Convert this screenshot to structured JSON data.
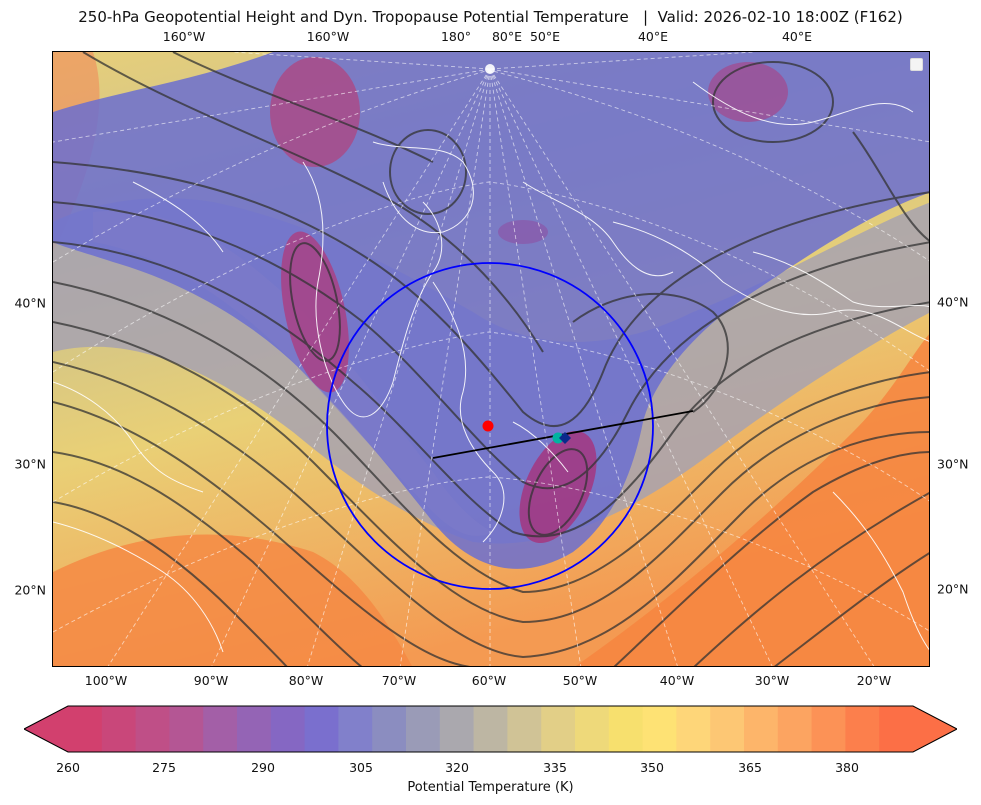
{
  "figure": {
    "title": "250-hPa Geopotential Height and Dyn. Tropopause Potential Temperature   |  Valid: 2026-02-10 18:00Z (F162)"
  },
  "axes": {
    "top_ticks": [
      "160°W",
      "160°W",
      "180°",
      "80°E",
      "50°E",
      "40°E",
      "40°E"
    ],
    "bottom_ticks": [
      "100°W",
      "90°W",
      "80°W",
      "70°W",
      "60°W",
      "50°W",
      "40°W",
      "30°W",
      "20°W"
    ],
    "left_ticks": [
      "40°N",
      "30°N",
      "20°N"
    ],
    "right_ticks": [
      "40°N",
      "30°N",
      "20°N"
    ]
  },
  "colorbar": {
    "label": "Potential Temperature (K)",
    "ticks": [
      "260",
      "275",
      "290",
      "305",
      "320",
      "335",
      "350",
      "365",
      "380"
    ],
    "colors": [
      "#d2406e",
      "#c9477a",
      "#bf4f87",
      "#b45694",
      "#a35fa7",
      "#9464b5",
      "#8567c3",
      "#7a6fce",
      "#8180cb",
      "#8b8dc0",
      "#9a9bb7",
      "#aaa8ae",
      "#bdb6a3",
      "#d0c396",
      "#e2cf87",
      "#eed97a",
      "#f7e06e",
      "#fee274",
      "#fed679",
      "#fdc774",
      "#fdb56a",
      "#fca461",
      "#fc9256",
      "#fc7f4c",
      "#fc6f46"
    ],
    "extend": "both"
  },
  "map": {
    "domain_lon_range": [
      -105,
      -15
    ],
    "domain_lat_range": [
      15,
      50
    ],
    "projection": "north-polar stereographic crop",
    "circle_color": "#0000ff",
    "marker_red_color": "#ff0000",
    "marker_cyan_color": "#00b3a0",
    "track_color": "#000000",
    "contour_color": "#333333",
    "coastline_color": "#ffffff"
  }
}
